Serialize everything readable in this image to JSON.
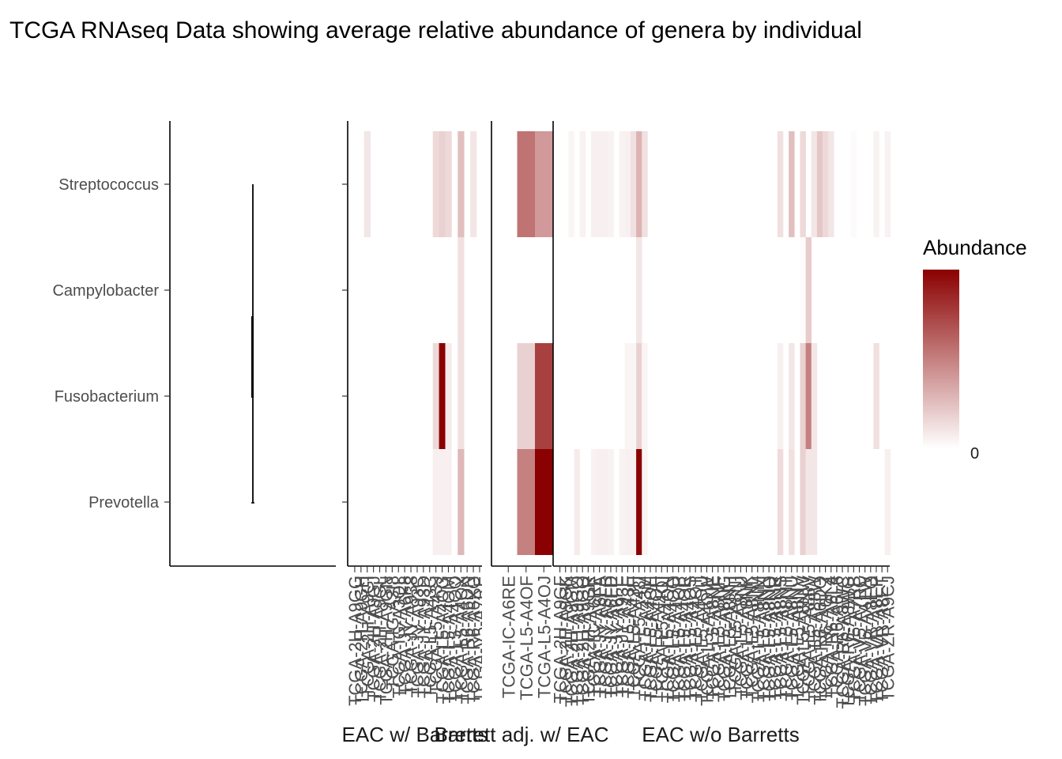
{
  "chart_data": {
    "type": "heatmap",
    "title": "TCGA RNAseq Data showing average relative abundance of genera by individual",
    "genera": [
      "Streptococcus",
      "Campylobacter",
      "Fusobacterium",
      "Prevotella"
    ],
    "legend": {
      "title": "Abundance",
      "min_label": "0",
      "low_color": "#ffffff",
      "high_color": "#8b0000",
      "position": "right"
    },
    "facets": [
      {
        "name": "EAC w/ Barretts",
        "samples": [
          "TCGA-2H-A9GG",
          "TCGA-2H-A9GH",
          "TCGA-2H-A9GI",
          "TCGA-2H-A9GJ",
          "TCGA-2H-A9GL",
          "TCGA-2H-A9GN",
          "TCGA-IG-A3I8",
          "TCGA-IG-A3QL",
          "TCGA-JY-A6F8",
          "TCGA-JY-A938",
          "TCGA-JY-A93C",
          "TCGA-JY-A93D",
          "TCGA-L5-A43C",
          "TCGA-L5-A43J",
          "TCGA-L5-A4OG",
          "TCGA-L5-A4OM",
          "TCGA-L5-A4OQ",
          "TCGA-L5-A4OX",
          "TCGA-R6-A6DN",
          "TCGA-R6-A6XG",
          "TCGA-V5-A7RE"
        ],
        "values": {
          "Streptococcus": [
            0,
            0,
            0.1,
            0,
            0,
            0,
            0,
            0,
            0,
            0,
            0,
            0,
            0,
            0.15,
            0.18,
            0.15,
            0,
            0.25,
            0,
            0.1,
            0
          ],
          "Campylobacter": [
            0,
            0,
            0,
            0,
            0,
            0,
            0,
            0,
            0,
            0,
            0,
            0,
            0,
            0,
            0,
            0,
            0,
            0.12,
            0,
            0,
            0
          ],
          "Fusobacterium": [
            0,
            0,
            0,
            0,
            0,
            0,
            0,
            0,
            0,
            0,
            0,
            0,
            0,
            0.15,
            1.0,
            0.08,
            0,
            0.12,
            0,
            0,
            0
          ],
          "Prevotella": [
            0,
            0,
            0,
            0,
            0,
            0,
            0,
            0,
            0,
            0,
            0,
            0,
            0,
            0.06,
            0.06,
            0.06,
            0,
            0.28,
            0,
            0,
            0
          ]
        }
      },
      {
        "name": "Barrett adj. w/ EAC",
        "samples": [
          "TCGA-IC-A6RE",
          "TCGA-L5-A4OF",
          "TCGA-L5-A4OJ"
        ],
        "values": {
          "Streptococcus": [
            0,
            0.55,
            0.4
          ],
          "Campylobacter": [
            0,
            0,
            0
          ],
          "Fusobacterium": [
            0,
            0.18,
            0.75
          ],
          "Prevotella": [
            0,
            0.5,
            1.0
          ]
        }
      },
      {
        "name": "EAC w/o Barretts",
        "samples": [
          "TCGA-2H-A9GF",
          "TCGA-2H-A9GK",
          "TCGA-2H-A9GM",
          "TCGA-2H-A9GO",
          "TCGA-2H-A9GQ",
          "TCGA-2H-A9GR",
          "TCGA-IC-A6RF",
          "TCGA-JY-A6FA",
          "TCGA-JY-A6FB",
          "TCGA-JY-A6FD",
          "TCGA-JY-A6FE",
          "TCGA-JY-A93E",
          "TCGA-L5-A43E",
          "TCGA-L5-A43H",
          "TCGA-L5-A43I",
          "TCGA-L5-A43M",
          "TCGA-L5-A4OE",
          "TCGA-L5-A4OH",
          "TCGA-L5-A4OI",
          "TCGA-L5-A4ON",
          "TCGA-L5-A4OO",
          "TCGA-L5-A4OP",
          "TCGA-L5-A4OR",
          "TCGA-L5-A4OS",
          "TCGA-L5-A4OT",
          "TCGA-L5-A4OU",
          "TCGA-L5-A4OW",
          "TCGA-L5-A8NE",
          "TCGA-L5-A8NF",
          "TCGA-L5-A8NG",
          "TCGA-L5-A8NH",
          "TCGA-L5-A8NI",
          "TCGA-L5-A8NJ",
          "TCGA-L5-A8NK",
          "TCGA-L5-A8NL",
          "TCGA-L5-A8NM",
          "TCGA-L5-A8NN",
          "TCGA-L5-A8NQ",
          "TCGA-L5-A8NR",
          "TCGA-L5-A8NS",
          "TCGA-L5-A8NT",
          "TCGA-L5-A8NU",
          "TCGA-L5-A8NV",
          "TCGA-L5-A8NW",
          "TCGA-L5-A88V",
          "TCGA-L5-A88W",
          "TCGA-R6-A6DQ",
          "TCGA-R6-A6KZ",
          "TCGA-R6-A6L4",
          "TCGA-R6-A6L6",
          "TCGA-R6-A8WC",
          "TCGA-R6-A8WG",
          "TCGA-V5-A7RB",
          "TCGA-V5-A7RC",
          "TCGA-V5-AA1W",
          "TCGA-VR-A8EO",
          "TCGA-VR-A8EP",
          "TCGA-VR-A8ET",
          "TCGA-ZR-A9CJ"
        ],
        "values": {
          "Streptococcus": [
            0,
            0,
            0.04,
            0,
            0.05,
            0,
            0.06,
            0.06,
            0.06,
            0.05,
            0,
            0.05,
            0.06,
            0.12,
            0.3,
            0.12,
            0,
            0,
            0,
            0,
            0,
            0,
            0,
            0,
            0,
            0,
            0,
            0,
            0,
            0,
            0,
            0,
            0,
            0,
            0,
            0,
            0,
            0,
            0,
            0.12,
            0,
            0.25,
            0,
            0.15,
            0,
            0.1,
            0.22,
            0.15,
            0.1,
            0,
            0,
            0,
            0.02,
            0,
            0,
            0,
            0.05,
            0,
            0.05
          ],
          "Campylobacter": [
            0,
            0,
            0,
            0,
            0,
            0,
            0,
            0,
            0,
            0,
            0,
            0,
            0,
            0,
            0.1,
            0,
            0,
            0,
            0,
            0,
            0,
            0,
            0,
            0,
            0,
            0,
            0,
            0,
            0,
            0,
            0,
            0,
            0,
            0,
            0,
            0,
            0,
            0,
            0,
            0,
            0,
            0,
            0,
            0.02,
            0.2,
            0,
            0,
            0,
            0,
            0,
            0,
            0,
            0,
            0,
            0,
            0,
            0,
            0,
            0
          ],
          "Fusobacterium": [
            0,
            0,
            0,
            0,
            0,
            0,
            0,
            0,
            0,
            0,
            0,
            0,
            0.04,
            0.04,
            0.18,
            0.04,
            0,
            0,
            0,
            0,
            0,
            0,
            0,
            0,
            0,
            0,
            0,
            0,
            0,
            0,
            0,
            0,
            0,
            0,
            0,
            0,
            0,
            0,
            0,
            0.06,
            0,
            0.1,
            0,
            0.18,
            0.5,
            0.1,
            0,
            0,
            0,
            0,
            0,
            0,
            0,
            0,
            0,
            0,
            0.12,
            0,
            0
          ],
          "Prevotella": [
            0,
            0,
            0,
            0.08,
            0,
            0,
            0.05,
            0.06,
            0.06,
            0.05,
            0,
            0.05,
            0.06,
            0.06,
            1.0,
            0.04,
            0,
            0,
            0,
            0,
            0,
            0,
            0,
            0,
            0,
            0,
            0,
            0,
            0,
            0,
            0,
            0,
            0,
            0,
            0,
            0,
            0,
            0,
            0,
            0.14,
            0,
            0.12,
            0,
            0.18,
            0.1,
            0.1,
            0,
            0,
            0,
            0,
            0,
            0,
            0,
            0,
            0,
            0,
            0,
            0,
            0.06
          ]
        }
      }
    ]
  }
}
